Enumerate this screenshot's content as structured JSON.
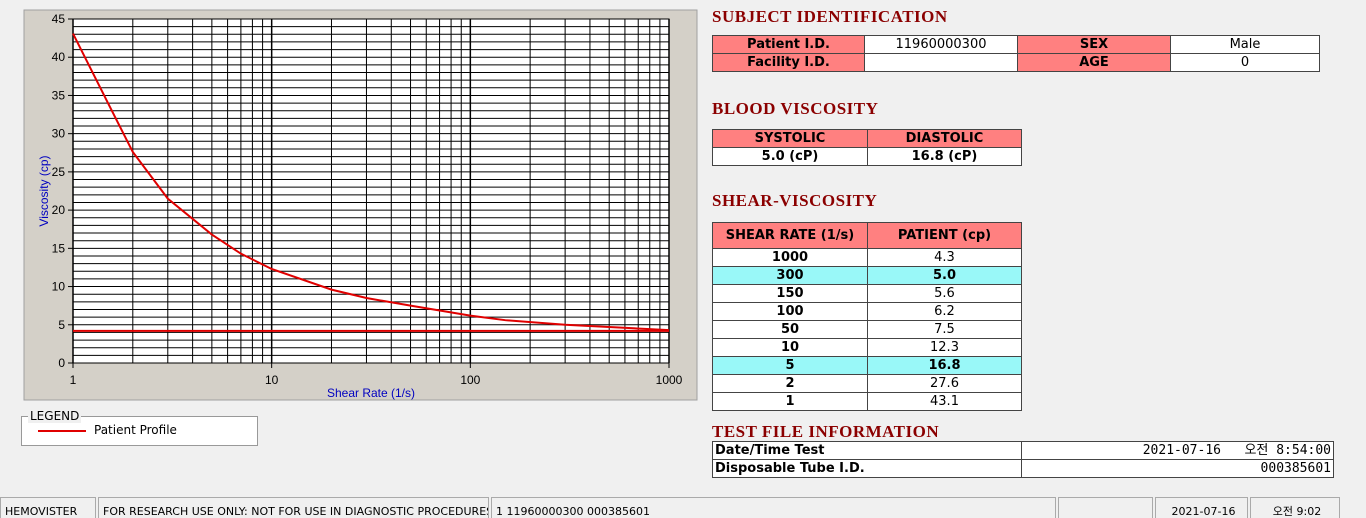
{
  "chart_data": {
    "type": "line",
    "xlabel": "Shear Rate (1/s)",
    "ylabel": "Viscosity (cp)",
    "xlog": true,
    "grid": true,
    "xlim": [
      1,
      1000
    ],
    "ylim": [
      0,
      45
    ],
    "xticks": [
      1,
      10,
      100,
      1000
    ],
    "yticks": [
      0,
      5,
      10,
      15,
      20,
      25,
      30,
      35,
      40,
      45
    ],
    "series": [
      {
        "name": "Patient Profile",
        "color": "#e00000",
        "x": [
          1,
          1.5,
          2,
          3,
          5,
          7,
          10,
          20,
          30,
          50,
          100,
          150,
          300,
          1000
        ],
        "values": [
          43.1,
          34,
          27.6,
          21.5,
          16.8,
          14.3,
          12.3,
          9.6,
          8.5,
          7.5,
          6.2,
          5.6,
          5.0,
          4.3
        ]
      },
      {
        "color": "#e00000",
        "x": [
          1,
          1000
        ],
        "values": [
          4.2,
          4.2
        ]
      }
    ]
  },
  "legend": {
    "title": "LEGEND"
  },
  "subject": {
    "title": "SUBJECT IDENTIFICATION",
    "patient_label": "Patient I.D.",
    "patient_id": "11960000300",
    "sex_label": "SEX",
    "sex": "Male",
    "facility_label": "Facility I.D.",
    "age_label": "AGE",
    "age": "0"
  },
  "blood": {
    "title": "BLOOD VISCOSITY",
    "headers": [
      "SYSTOLIC",
      "DIASTOLIC"
    ],
    "values": [
      "5.0 (cP)",
      "16.8 (cP)"
    ]
  },
  "shear": {
    "title": "SHEAR-VISCOSITY",
    "headers": [
      "SHEAR RATE (1/s)",
      "PATIENT (cp)"
    ],
    "rows": [
      {
        "cells": [
          "1000",
          "4.3"
        ]
      },
      {
        "cells": [
          "300",
          "5.0"
        ],
        "highlight": true
      },
      {
        "cells": [
          "150",
          "5.6"
        ]
      },
      {
        "cells": [
          "100",
          "6.2"
        ]
      },
      {
        "cells": [
          "50",
          "7.5"
        ]
      },
      {
        "cells": [
          "10",
          "12.3"
        ]
      },
      {
        "cells": [
          "5",
          "16.8"
        ],
        "highlight": true
      },
      {
        "cells": [
          "2",
          "27.6"
        ]
      },
      {
        "cells": [
          "1",
          "43.1"
        ]
      }
    ]
  },
  "testfile": {
    "title": "TEST FILE INFORMATION",
    "rows": [
      [
        "Date/Time Test",
        "2021-07-16   오전 8:54:00"
      ],
      [
        "Disposable Tube I.D.",
        "000385601"
      ]
    ]
  },
  "status": {
    "app": "HEMOVISTER",
    "notice": "FOR RESEARCH USE ONLY: NOT FOR USE IN DIAGNOSTIC PROCEDURES",
    "record": "1  11960000300  000385601",
    "date": "2021-07-16",
    "time": "오전 9:02"
  }
}
